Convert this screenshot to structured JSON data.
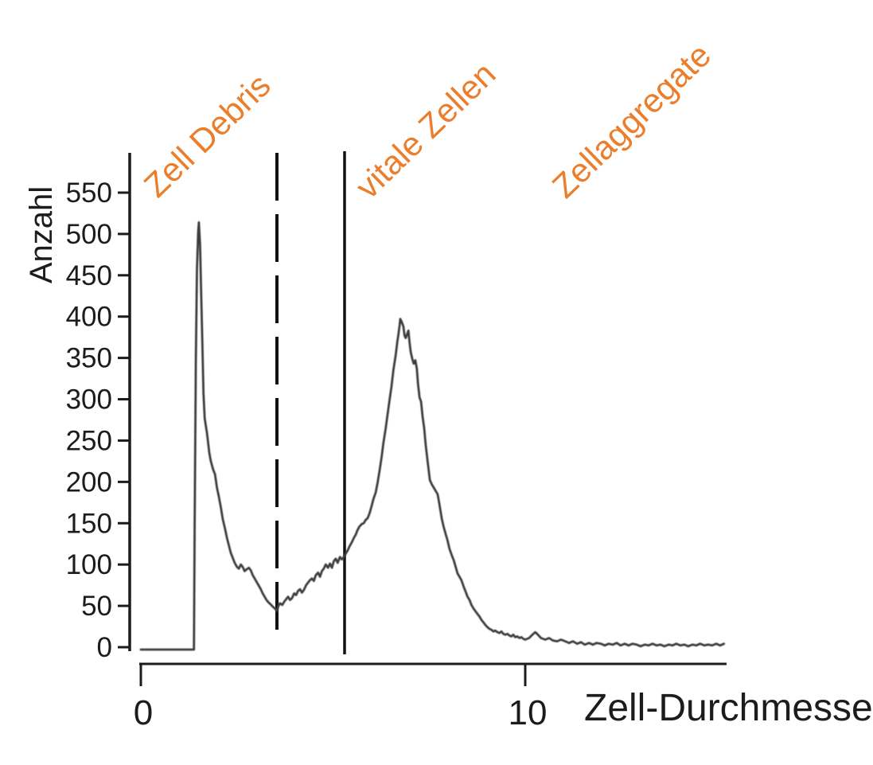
{
  "chart_data": {
    "type": "line",
    "description_visible_text_only": "",
    "xlabel": "Zell-Durchmesser",
    "ylabel": "Anzahl",
    "grid": false,
    "legend": "none",
    "line_color": "#3d3d3d",
    "axis_color": "#1c1c1c",
    "annotation_color": "#EB7D2B",
    "x_axis": {
      "range": [
        0,
        15.3
      ],
      "ticks": [
        {
          "value": 0,
          "label": "0"
        },
        {
          "value": 10,
          "label": "10"
        }
      ]
    },
    "y_axis": {
      "range": [
        0,
        600
      ],
      "ticks": [
        {
          "value": 0,
          "label": "0"
        },
        {
          "value": 50,
          "label": "50"
        },
        {
          "value": 100,
          "label": "100"
        },
        {
          "value": 150,
          "label": "150"
        },
        {
          "value": 200,
          "label": "200"
        },
        {
          "value": 250,
          "label": "250"
        },
        {
          "value": 300,
          "label": "300"
        },
        {
          "value": 350,
          "label": "350"
        },
        {
          "value": 400,
          "label": "400"
        },
        {
          "value": 450,
          "label": "450"
        },
        {
          "value": 500,
          "label": "500"
        },
        {
          "value": 550,
          "label": "550"
        }
      ]
    },
    "markers": [
      {
        "style": "dashed",
        "x": 3.54
      },
      {
        "style": "solid",
        "x": 5.3
      }
    ],
    "annotations": [
      {
        "text": "Zell Debris",
        "color": "#EB7D2B",
        "rotation_deg": -44
      },
      {
        "text": "vitale Zellen",
        "color": "#EB7D2B",
        "rotation_deg": -44
      },
      {
        "text": "Zellaggregate",
        "color": "#EB7D2B",
        "rotation_deg": -44
      }
    ],
    "peaks": [
      {
        "x": 1.5,
        "count": 515
      },
      {
        "x": 6.75,
        "count": 400
      }
    ],
    "valley": {
      "x": 3.54,
      "count": 48
    },
    "series": [
      {
        "name": "histogram-trace",
        "points": [
          [
            0,
            0
          ],
          [
            1.31,
            0
          ],
          [
            1.38,
            0
          ],
          [
            1.4,
            150
          ],
          [
            1.43,
            350
          ],
          [
            1.46,
            460
          ],
          [
            1.49,
            505
          ],
          [
            1.51,
            517
          ],
          [
            1.54,
            490
          ],
          [
            1.57,
            430
          ],
          [
            1.6,
            370
          ],
          [
            1.63,
            310
          ],
          [
            1.66,
            280
          ],
          [
            1.7,
            268
          ],
          [
            1.72,
            262
          ],
          [
            1.78,
            238
          ],
          [
            1.82,
            228
          ],
          [
            1.88,
            218
          ],
          [
            1.93,
            212
          ],
          [
            1.98,
            196
          ],
          [
            2.03,
            185
          ],
          [
            2.08,
            172
          ],
          [
            2.13,
            158
          ],
          [
            2.19,
            146
          ],
          [
            2.24,
            135
          ],
          [
            2.29,
            126
          ],
          [
            2.34,
            117
          ],
          [
            2.4,
            110
          ],
          [
            2.44,
            105
          ],
          [
            2.5,
            100
          ],
          [
            2.55,
            98
          ],
          [
            2.6,
            103
          ],
          [
            2.65,
            100
          ],
          [
            2.7,
            95
          ],
          [
            2.75,
            97
          ],
          [
            2.81,
            99
          ],
          [
            2.86,
            96
          ],
          [
            2.91,
            90
          ],
          [
            2.96,
            86
          ],
          [
            3.01,
            82
          ],
          [
            3.06,
            78
          ],
          [
            3.12,
            73
          ],
          [
            3.17,
            68
          ],
          [
            3.22,
            64
          ],
          [
            3.27,
            60
          ],
          [
            3.32,
            57
          ],
          [
            3.37,
            55
          ],
          [
            3.43,
            52
          ],
          [
            3.48,
            50
          ],
          [
            3.54,
            47
          ],
          [
            3.58,
            53
          ],
          [
            3.62,
            56
          ],
          [
            3.68,
            54
          ],
          [
            3.73,
            58
          ],
          [
            3.78,
            61
          ],
          [
            3.83,
            64
          ],
          [
            3.88,
            60
          ],
          [
            3.93,
            62
          ],
          [
            3.99,
            68
          ],
          [
            4.04,
            66
          ],
          [
            4.09,
            71
          ],
          [
            4.14,
            73
          ],
          [
            4.19,
            69
          ],
          [
            4.24,
            72
          ],
          [
            4.3,
            78
          ],
          [
            4.35,
            81
          ],
          [
            4.4,
            84
          ],
          [
            4.45,
            86
          ],
          [
            4.5,
            83
          ],
          [
            4.55,
            90
          ],
          [
            4.61,
            93
          ],
          [
            4.66,
            88
          ],
          [
            4.71,
            95
          ],
          [
            4.76,
            98
          ],
          [
            4.81,
            103
          ],
          [
            4.87,
            99
          ],
          [
            4.92,
            104
          ],
          [
            4.97,
            99
          ],
          [
            5.02,
            107
          ],
          [
            5.07,
            110
          ],
          [
            5.12,
            105
          ],
          [
            5.18,
            112
          ],
          [
            5.23,
            109
          ],
          [
            5.28,
            112
          ],
          [
            5.33,
            116
          ],
          [
            5.38,
            120
          ],
          [
            5.43,
            125
          ],
          [
            5.49,
            130
          ],
          [
            5.54,
            135
          ],
          [
            5.59,
            139
          ],
          [
            5.64,
            145
          ],
          [
            5.69,
            149
          ],
          [
            5.75,
            152
          ],
          [
            5.8,
            153
          ],
          [
            5.85,
            157
          ],
          [
            5.9,
            159
          ],
          [
            5.95,
            165
          ],
          [
            6.0,
            173
          ],
          [
            6.05,
            182
          ],
          [
            6.11,
            190
          ],
          [
            6.16,
            202
          ],
          [
            6.21,
            216
          ],
          [
            6.26,
            232
          ],
          [
            6.31,
            250
          ],
          [
            6.37,
            268
          ],
          [
            6.42,
            285
          ],
          [
            6.47,
            302
          ],
          [
            6.52,
            318
          ],
          [
            6.57,
            338
          ],
          [
            6.63,
            356
          ],
          [
            6.67,
            372
          ],
          [
            6.7,
            381
          ],
          [
            6.73,
            392
          ],
          [
            6.75,
            400
          ],
          [
            6.79,
            396
          ],
          [
            6.83,
            391
          ],
          [
            6.86,
            380
          ],
          [
            6.89,
            377
          ],
          [
            6.93,
            382
          ],
          [
            6.96,
            386
          ],
          [
            6.99,
            372
          ],
          [
            7.02,
            360
          ],
          [
            7.06,
            352
          ],
          [
            7.1,
            346
          ],
          [
            7.14,
            350
          ],
          [
            7.18,
            340
          ],
          [
            7.21,
            322
          ],
          [
            7.25,
            305
          ],
          [
            7.29,
            300
          ],
          [
            7.33,
            282
          ],
          [
            7.37,
            268
          ],
          [
            7.41,
            248
          ],
          [
            7.46,
            228
          ],
          [
            7.52,
            205
          ],
          [
            7.57,
            200
          ],
          [
            7.62,
            196
          ],
          [
            7.67,
            192
          ],
          [
            7.72,
            188
          ],
          [
            7.77,
            175
          ],
          [
            7.83,
            158
          ],
          [
            7.88,
            148
          ],
          [
            7.93,
            140
          ],
          [
            7.98,
            132
          ],
          [
            8.03,
            122
          ],
          [
            8.09,
            114
          ],
          [
            8.14,
            108
          ],
          [
            8.19,
            100
          ],
          [
            8.24,
            92
          ],
          [
            8.29,
            88
          ],
          [
            8.34,
            84
          ],
          [
            8.4,
            76
          ],
          [
            8.45,
            70
          ],
          [
            8.5,
            64
          ],
          [
            8.55,
            60
          ],
          [
            8.6,
            54
          ],
          [
            8.65,
            50
          ],
          [
            8.71,
            46
          ],
          [
            8.76,
            43
          ],
          [
            8.81,
            40
          ],
          [
            8.86,
            36
          ],
          [
            8.91,
            33
          ],
          [
            8.96,
            30
          ],
          [
            9.02,
            27
          ],
          [
            9.07,
            25
          ],
          [
            9.12,
            24
          ],
          [
            9.17,
            22
          ],
          [
            9.22,
            23
          ],
          [
            9.28,
            21
          ],
          [
            9.33,
            20
          ],
          [
            9.38,
            22
          ],
          [
            9.43,
            19
          ],
          [
            9.48,
            18
          ],
          [
            9.54,
            19
          ],
          [
            9.59,
            17
          ],
          [
            9.64,
            16
          ],
          [
            9.69,
            18
          ],
          [
            9.74,
            15
          ],
          [
            9.79,
            16
          ],
          [
            9.85,
            14
          ],
          [
            9.9,
            15
          ],
          [
            9.95,
            13
          ],
          [
            10.0,
            12
          ],
          [
            10.1,
            14
          ],
          [
            10.21,
            19
          ],
          [
            10.26,
            21
          ],
          [
            10.31,
            19
          ],
          [
            10.41,
            14
          ],
          [
            10.52,
            12
          ],
          [
            10.62,
            14
          ],
          [
            10.72,
            11
          ],
          [
            10.83,
            10
          ],
          [
            10.93,
            12
          ],
          [
            11.04,
            10
          ],
          [
            11.14,
            8
          ],
          [
            11.24,
            10
          ],
          [
            11.35,
            7
          ],
          [
            11.45,
            9
          ],
          [
            11.55,
            6
          ],
          [
            11.66,
            8
          ],
          [
            11.76,
            6
          ],
          [
            11.86,
            8
          ],
          [
            11.97,
            7
          ],
          [
            12.07,
            5
          ],
          [
            12.17,
            7
          ],
          [
            12.28,
            6
          ],
          [
            12.38,
            8
          ],
          [
            12.48,
            5
          ],
          [
            12.59,
            7
          ],
          [
            12.69,
            5
          ],
          [
            12.79,
            7
          ],
          [
            12.9,
            6
          ],
          [
            13.0,
            4
          ],
          [
            13.11,
            6
          ],
          [
            13.21,
            5
          ],
          [
            13.31,
            7
          ],
          [
            13.42,
            5
          ],
          [
            13.52,
            6
          ],
          [
            13.62,
            4
          ],
          [
            13.73,
            6
          ],
          [
            13.83,
            5
          ],
          [
            13.93,
            7
          ],
          [
            14.04,
            5
          ],
          [
            14.14,
            6
          ],
          [
            14.24,
            4
          ],
          [
            14.35,
            6
          ],
          [
            14.45,
            5
          ],
          [
            14.55,
            7
          ],
          [
            14.66,
            5
          ],
          [
            14.76,
            6
          ],
          [
            14.86,
            5
          ],
          [
            14.97,
            7
          ],
          [
            15.07,
            5
          ],
          [
            15.17,
            7
          ]
        ]
      }
    ]
  }
}
